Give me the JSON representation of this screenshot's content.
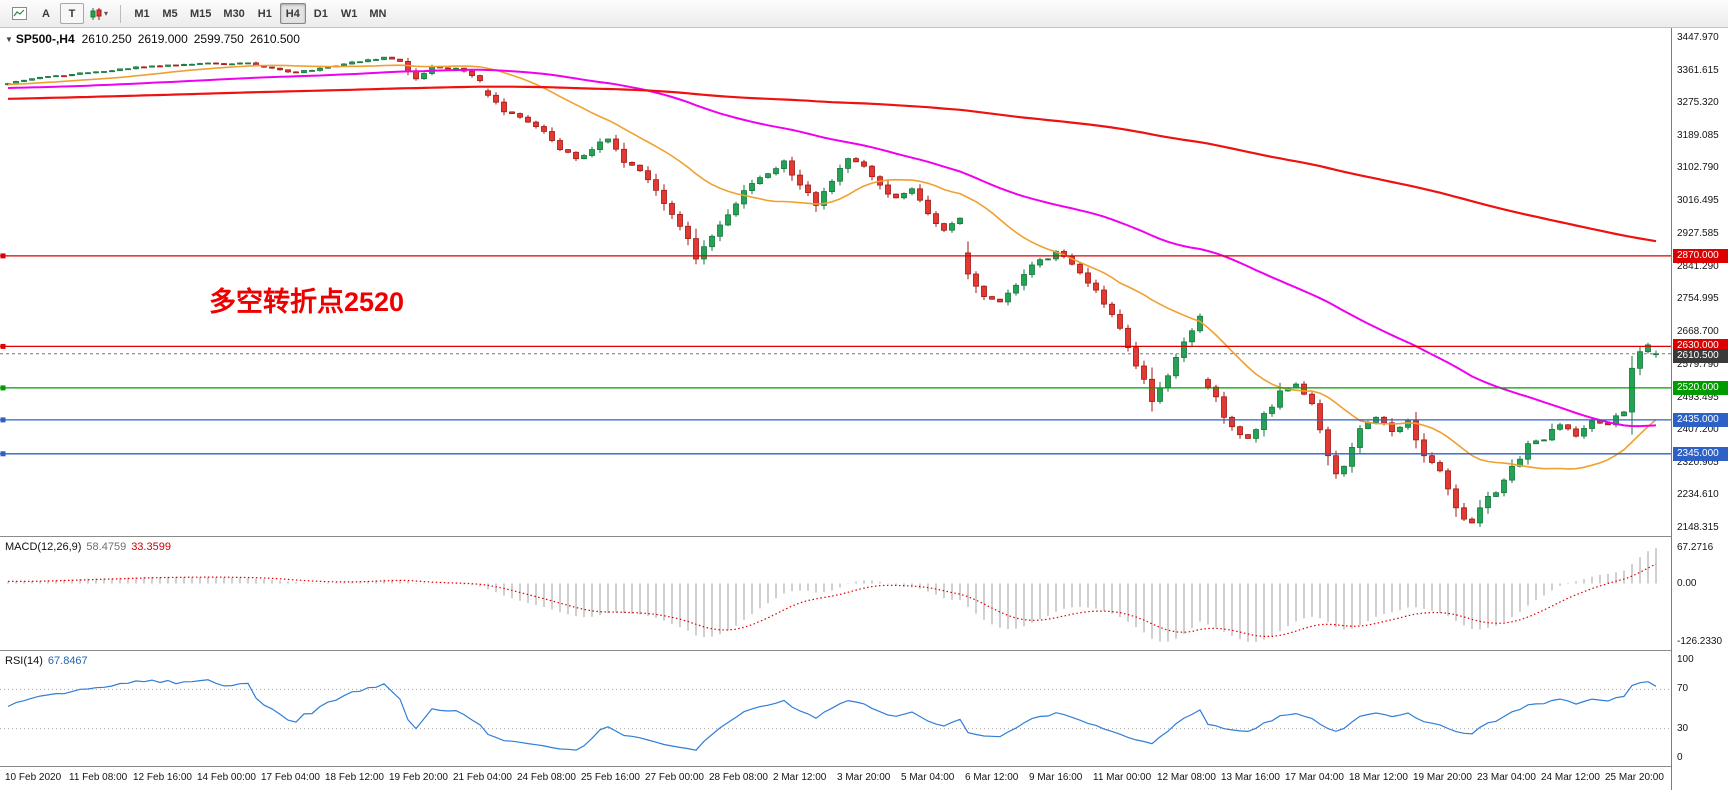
{
  "toolbar": {
    "buttons": [
      "A",
      "T"
    ],
    "icon_names": [
      "chart-window-icon",
      "indicators-candles-icon",
      "dropdown-caret-icon"
    ],
    "timeframes": [
      "M1",
      "M5",
      "M15",
      "M30",
      "H1",
      "H4",
      "D1",
      "W1",
      "MN"
    ],
    "active_timeframe": "H4"
  },
  "chart": {
    "symbol_period": "SP500-,H4",
    "ohlc": {
      "open": "2610.250",
      "high": "2619.000",
      "low": "2599.750",
      "close": "2610.500"
    },
    "annotation": {
      "text": "多空转折点2520",
      "color": "#ef0000"
    },
    "current_price": {
      "label": "2610.500",
      "value": 2610.5,
      "badge_color": "#3a3a3a"
    },
    "levels": [
      {
        "label": "2870.000",
        "value": 2870,
        "color": "#dd0000"
      },
      {
        "label": "2630.000",
        "value": 2630,
        "color": "#dd0000"
      },
      {
        "label": "2520.000",
        "value": 2520,
        "color": "#009b00"
      },
      {
        "label": "2435.000",
        "value": 2435,
        "color": "#2d61c6"
      },
      {
        "label": "2345.000",
        "value": 2345,
        "color": "#2d61c6"
      }
    ],
    "y_axis_labels": [
      "3447.970",
      "3361.615",
      "3275.320",
      "3189.085",
      "3102.790",
      "3016.495",
      "2927.585",
      "2841.290",
      "2754.995",
      "2668.700",
      "2579.790",
      "2493.495",
      "2407.200",
      "2320.905",
      "2234.610",
      "2148.315"
    ],
    "x_axis_labels": [
      "10 Feb 2020",
      "11 Feb 08:00",
      "12 Feb 16:00",
      "14 Feb 00:00",
      "17 Feb 04:00",
      "18 Feb 12:00",
      "19 Feb 20:00",
      "21 Feb 04:00",
      "24 Feb 08:00",
      "25 Feb 16:00",
      "27 Feb 00:00",
      "28 Feb 08:00",
      "2 Mar 12:00",
      "3 Mar 20:00",
      "5 Mar 04:00",
      "6 Mar 12:00",
      "9 Mar 16:00",
      "11 Mar 00:00",
      "12 Mar 08:00",
      "13 Mar 16:00",
      "17 Mar 04:00",
      "18 Mar 12:00",
      "19 Mar 20:00",
      "23 Mar 04:00",
      "24 Mar 12:00",
      "25 Mar 20:00"
    ],
    "colors": {
      "up": "#23a455",
      "up_border": "#16763c",
      "down": "#e23a32",
      "down_border": "#a31712",
      "ma_fast": "#f0a030",
      "ma_mid": "#f000f0",
      "ma_slow": "#ee1111",
      "macd_hist": "#a0a0a0",
      "macd_signal": "#e00000",
      "rsi": "#2f7ed8"
    }
  },
  "indicators": {
    "macd": {
      "name": "MACD(12,26,9)",
      "value_main": "58.4759",
      "value_signal": "33.3599",
      "fast": 12,
      "slow": 26,
      "signal": 9,
      "axis": [
        "67.2716",
        "0.00",
        "-126.2330"
      ]
    },
    "rsi": {
      "name": "RSI(14)",
      "value": "67.8467",
      "period": 14,
      "levels": [
        70,
        30
      ],
      "axis": [
        "100",
        "70",
        "30",
        "0"
      ]
    }
  },
  "chart_data": {
    "type": "candlestick",
    "symbol": "SP500-",
    "timeframe": "H4",
    "bars_visible": 207,
    "label_every_bars": 8,
    "price_range": {
      "top": 3447.97,
      "bottom": 2148.315
    },
    "prehistory": {
      "bars": 210,
      "from": 3240,
      "to": 3327
    },
    "ma_windows": {
      "fast": 20,
      "mid": 64,
      "slow": 200
    },
    "gap_opens": {
      "60": 3308,
      "120": 2878,
      "150": 2542
    },
    "close_anchors": [
      [
        0,
        3327
      ],
      [
        3,
        3340
      ],
      [
        6,
        3348
      ],
      [
        10,
        3356
      ],
      [
        14,
        3366
      ],
      [
        18,
        3374
      ],
      [
        22,
        3378
      ],
      [
        26,
        3380
      ],
      [
        30,
        3382
      ],
      [
        33,
        3368
      ],
      [
        36,
        3356
      ],
      [
        40,
        3372
      ],
      [
        44,
        3385
      ],
      [
        47,
        3397
      ],
      [
        49,
        3386
      ],
      [
        51,
        3340
      ],
      [
        53,
        3372
      ],
      [
        56,
        3368
      ],
      [
        59,
        3335
      ],
      [
        60,
        3296
      ],
      [
        62,
        3252
      ],
      [
        65,
        3225
      ],
      [
        67,
        3200
      ],
      [
        69,
        3152
      ],
      [
        71,
        3128
      ],
      [
        73,
        3152
      ],
      [
        75,
        3180
      ],
      [
        77,
        3118
      ],
      [
        79,
        3096
      ],
      [
        81,
        3044
      ],
      [
        83,
        2980
      ],
      [
        85,
        2916
      ],
      [
        86,
        2862
      ],
      [
        88,
        2922
      ],
      [
        89,
        2952
      ],
      [
        91,
        3008
      ],
      [
        93,
        3062
      ],
      [
        95,
        3088
      ],
      [
        97,
        3122
      ],
      [
        99,
        3058
      ],
      [
        101,
        3004
      ],
      [
        103,
        3068
      ],
      [
        105,
        3128
      ],
      [
        107,
        3108
      ],
      [
        109,
        3058
      ],
      [
        111,
        3024
      ],
      [
        113,
        3048
      ],
      [
        115,
        2982
      ],
      [
        117,
        2938
      ],
      [
        119,
        2970
      ],
      [
        120,
        2822
      ],
      [
        122,
        2762
      ],
      [
        124,
        2748
      ],
      [
        126,
        2792
      ],
      [
        128,
        2846
      ],
      [
        131,
        2882
      ],
      [
        133,
        2848
      ],
      [
        135,
        2798
      ],
      [
        137,
        2742
      ],
      [
        139,
        2678
      ],
      [
        141,
        2578
      ],
      [
        143,
        2484
      ],
      [
        145,
        2552
      ],
      [
        147,
        2642
      ],
      [
        149,
        2710
      ],
      [
        150,
        2522
      ],
      [
        152,
        2442
      ],
      [
        154,
        2396
      ],
      [
        155,
        2386
      ],
      [
        157,
        2452
      ],
      [
        159,
        2512
      ],
      [
        161,
        2530
      ],
      [
        163,
        2478
      ],
      [
        165,
        2340
      ],
      [
        166,
        2292
      ],
      [
        167,
        2312
      ],
      [
        168,
        2362
      ],
      [
        169,
        2412
      ],
      [
        171,
        2442
      ],
      [
        173,
        2404
      ],
      [
        175,
        2432
      ],
      [
        176,
        2382
      ],
      [
        178,
        2322
      ],
      [
        179,
        2300
      ],
      [
        180,
        2252
      ],
      [
        181,
        2202
      ],
      [
        182,
        2172
      ],
      [
        183,
        2162
      ],
      [
        184,
        2202
      ],
      [
        185,
        2232
      ],
      [
        186,
        2242
      ],
      [
        188,
        2312
      ],
      [
        190,
        2372
      ],
      [
        192,
        2382
      ],
      [
        194,
        2422
      ],
      [
        196,
        2392
      ],
      [
        198,
        2432
      ],
      [
        200,
        2422
      ],
      [
        201,
        2446
      ],
      [
        202,
        2456
      ],
      [
        203,
        2572
      ],
      [
        204,
        2616
      ],
      [
        205,
        2634
      ],
      [
        206,
        2610.5
      ]
    ]
  }
}
